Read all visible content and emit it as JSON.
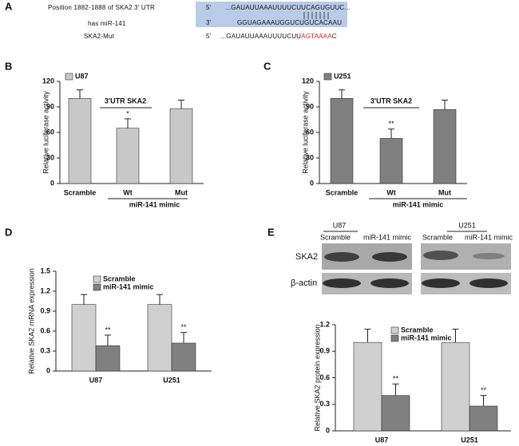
{
  "panel_a": {
    "label": "A",
    "site": "Position 1882-1888 of SKA2 3' UTR",
    "utr_five": "5'",
    "utr_seq": "...GAUAUUAAAUUUUCUUCAGUGUUC...",
    "mirna_name": "has miR-141",
    "mirna_three": "3'",
    "mirna_seq": "GGUAGAAAUGGUCUGUCACAAU",
    "mut_name": "SKA2-Mut",
    "mut_five": "5'",
    "mut_seq_start": "...GAUAUUAAAUUUUCUU",
    "mut_seq_site": "AGTAAAA",
    "mut_seq_end": "C"
  },
  "blot": {
    "groups": [
      "U87",
      "U251"
    ],
    "lanes": [
      "Scramble",
      "miR-141 mimic",
      "Scramble",
      "miR-141 mimic"
    ],
    "rows": [
      "SKA2",
      "β-actin"
    ]
  },
  "chart_data": [
    {
      "type": "bar",
      "label": "B",
      "ylabel": "Relative luciferase activity",
      "categories": [
        "Scramble",
        "Wt",
        "Mut"
      ],
      "series": [
        {
          "name": "U87",
          "color": "#c8c8c8",
          "values": [
            100,
            65,
            88
          ],
          "errors": [
            10,
            11,
            10
          ],
          "significance": [
            null,
            "*",
            null
          ]
        }
      ],
      "ylim": [
        0,
        120
      ],
      "yticks": [
        0,
        30,
        60,
        90,
        120
      ],
      "annotation": "3'UTR SKA2",
      "group_label": "miR-141 mimic"
    },
    {
      "type": "bar",
      "label": "C",
      "ylabel": "Relative luciferase activity",
      "categories": [
        "Scramble",
        "Wt",
        "Mut"
      ],
      "series": [
        {
          "name": "U251",
          "color": "#808080",
          "values": [
            100,
            53,
            87
          ],
          "errors": [
            10,
            11,
            11
          ],
          "significance": [
            null,
            "**",
            null
          ]
        }
      ],
      "ylim": [
        0,
        120
      ],
      "yticks": [
        0,
        30,
        60,
        90,
        120
      ],
      "annotation": "3'UTR SKA2",
      "group_label": "miR-141 mimic"
    },
    {
      "type": "bar",
      "label": "D",
      "ylabel": "Relative SKA2 mRNA expression",
      "categories": [
        "U87",
        "U251"
      ],
      "series": [
        {
          "name": "Scramble",
          "color": "#d0d0d0",
          "values": [
            1.0,
            1.0
          ],
          "errors": [
            0.15,
            0.15
          ],
          "significance": [
            null,
            null
          ]
        },
        {
          "name": "miR-141 mimic",
          "color": "#808080",
          "values": [
            0.38,
            0.42
          ],
          "errors": [
            0.16,
            0.16
          ],
          "significance": [
            "**",
            "**"
          ]
        }
      ],
      "ylim": [
        0,
        1.5
      ],
      "yticks": [
        0,
        0.3,
        0.6,
        0.9,
        1.2,
        1.5
      ]
    },
    {
      "type": "bar",
      "label": "E",
      "ylabel": "Relative SKA2 protein expression",
      "categories": [
        "U87",
        "U251"
      ],
      "series": [
        {
          "name": "Scramble",
          "color": "#d0d0d0",
          "values": [
            1.0,
            1.0
          ],
          "errors": [
            0.15,
            0.15
          ],
          "significance": [
            null,
            null
          ]
        },
        {
          "name": "miR-141 mimic",
          "color": "#808080",
          "values": [
            0.4,
            0.28
          ],
          "errors": [
            0.13,
            0.12
          ],
          "significance": [
            "**",
            "**"
          ]
        }
      ],
      "ylim": [
        0,
        1.2
      ],
      "yticks": [
        0,
        0.3,
        0.6,
        0.9,
        1.2
      ]
    }
  ]
}
